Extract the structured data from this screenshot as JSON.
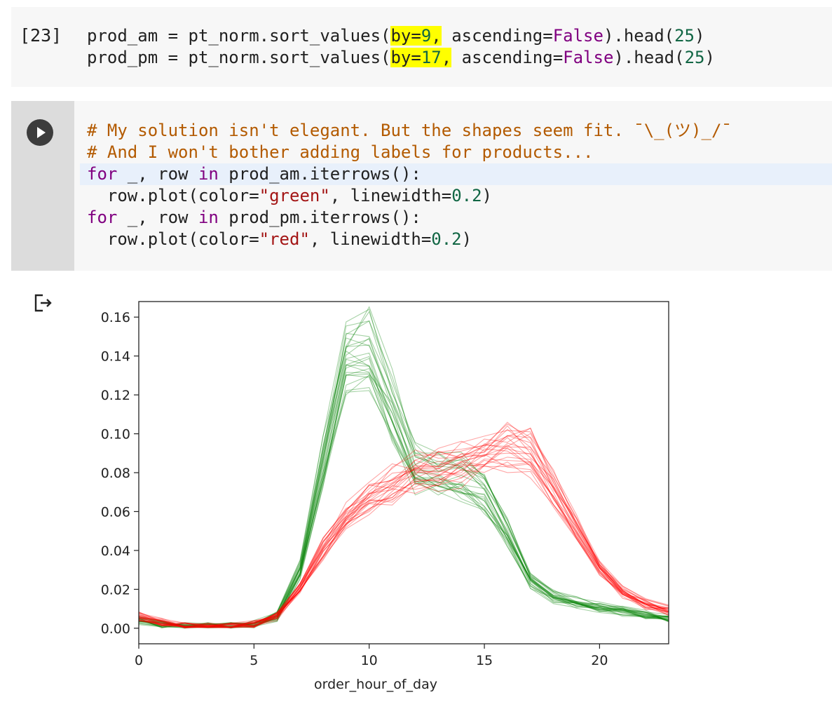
{
  "cell1": {
    "execution_count": "[23]",
    "lines": [
      [
        {
          "t": "prod_am = pt_norm.sort_values("
        },
        {
          "t": "by=",
          "c": "hl"
        },
        {
          "t": "9",
          "c": "hl num"
        },
        {
          "t": ",",
          "c": "hl"
        },
        {
          "t": " ascending="
        },
        {
          "t": "False",
          "c": "kw"
        },
        {
          "t": ").head("
        },
        {
          "t": "25",
          "c": "num"
        },
        {
          "t": ")"
        }
      ],
      [
        {
          "t": "prod_pm = pt_norm.sort_values("
        },
        {
          "t": "by=",
          "c": "hl"
        },
        {
          "t": "17",
          "c": "hl num"
        },
        {
          "t": ",",
          "c": "hl"
        },
        {
          "t": " ascending="
        },
        {
          "t": "False",
          "c": "kw"
        },
        {
          "t": ").head("
        },
        {
          "t": "25",
          "c": "num"
        },
        {
          "t": ")"
        }
      ]
    ]
  },
  "cell2": {
    "lines": [
      [
        {
          "t": "# My solution isn't elegant. But the shapes seem fit. ¯\\_(ツ)_/¯",
          "c": "cm"
        }
      ],
      [
        {
          "t": "# And I won't bother adding labels for products...",
          "c": "cm"
        }
      ],
      [
        {
          "t": "for",
          "c": "kw"
        },
        {
          "t": " _, row "
        },
        {
          "t": "in",
          "c": "kw"
        },
        {
          "t": " prod_am.iterrows():"
        }
      ],
      [
        {
          "t": "  row.plot(color="
        },
        {
          "t": "\"green\"",
          "c": "str"
        },
        {
          "t": ", linewidth="
        },
        {
          "t": "0.2",
          "c": "num"
        },
        {
          "t": ")"
        }
      ],
      [
        {
          "t": "for",
          "c": "kw"
        },
        {
          "t": " _, row "
        },
        {
          "t": "in",
          "c": "kw"
        },
        {
          "t": " prod_pm.iterrows():"
        }
      ],
      [
        {
          "t": "  row.plot(color="
        },
        {
          "t": "\"red\"",
          "c": "str"
        },
        {
          "t": ", linewidth="
        },
        {
          "t": "0.2",
          "c": "num"
        },
        {
          "t": ")"
        }
      ]
    ]
  },
  "icons": {
    "run": "play-icon",
    "output": "output-arrow-icon"
  },
  "chart_data": {
    "type": "line",
    "xlabel": "order_hour_of_day",
    "xlim": [
      0,
      23
    ],
    "ylim": [
      -0.008,
      0.168
    ],
    "xticks": [
      0,
      5,
      10,
      15,
      20
    ],
    "yticks": [
      0.0,
      0.02,
      0.04,
      0.06,
      0.08,
      0.1,
      0.12,
      0.14,
      0.16
    ],
    "ytick_labels": [
      "0.00",
      "0.02",
      "0.04",
      "0.06",
      "0.08",
      "0.10",
      "0.12",
      "0.14",
      "0.16"
    ],
    "x": [
      0,
      1,
      2,
      3,
      4,
      5,
      6,
      7,
      8,
      9,
      10,
      11,
      12,
      13,
      14,
      15,
      16,
      17,
      18,
      19,
      20,
      21,
      22,
      23
    ],
    "series": [
      {
        "color": "#008000",
        "count": 25,
        "values": [
          0.004,
          0.002,
          0.001,
          0.001,
          0.001,
          0.002,
          0.006,
          0.03,
          0.085,
          0.138,
          0.142,
          0.115,
          0.082,
          0.08,
          0.078,
          0.07,
          0.05,
          0.025,
          0.016,
          0.013,
          0.011,
          0.009,
          0.007,
          0.005
        ]
      },
      {
        "color": "#ff0000",
        "count": 25,
        "values": [
          0.006,
          0.003,
          0.001,
          0.001,
          0.001,
          0.002,
          0.006,
          0.02,
          0.04,
          0.055,
          0.065,
          0.072,
          0.078,
          0.08,
          0.083,
          0.088,
          0.092,
          0.088,
          0.07,
          0.05,
          0.03,
          0.018,
          0.012,
          0.009
        ]
      }
    ],
    "grid": false
  }
}
